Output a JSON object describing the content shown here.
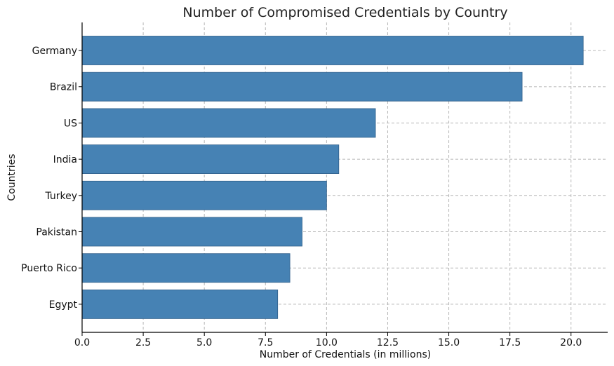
{
  "chart_data": {
    "type": "bar",
    "orientation": "horizontal",
    "title": "Number of Compromised Credentials by Country",
    "xlabel": "Number of Credentials (in millions)",
    "ylabel": "Countries",
    "categories": [
      "Germany",
      "Brazil",
      "US",
      "India",
      "Turkey",
      "Pakistan",
      "Puerto Rico",
      "Egypt"
    ],
    "values": [
      20.5,
      18.0,
      12.0,
      10.5,
      10.0,
      9.0,
      8.5,
      8.0
    ],
    "xlim": [
      0,
      21.5
    ],
    "xticks": [
      "0.0",
      "2.5",
      "5.0",
      "7.5",
      "10.0",
      "12.5",
      "15.0",
      "17.5",
      "20.0"
    ],
    "grid": true,
    "bar_color": "#4682b4"
  }
}
